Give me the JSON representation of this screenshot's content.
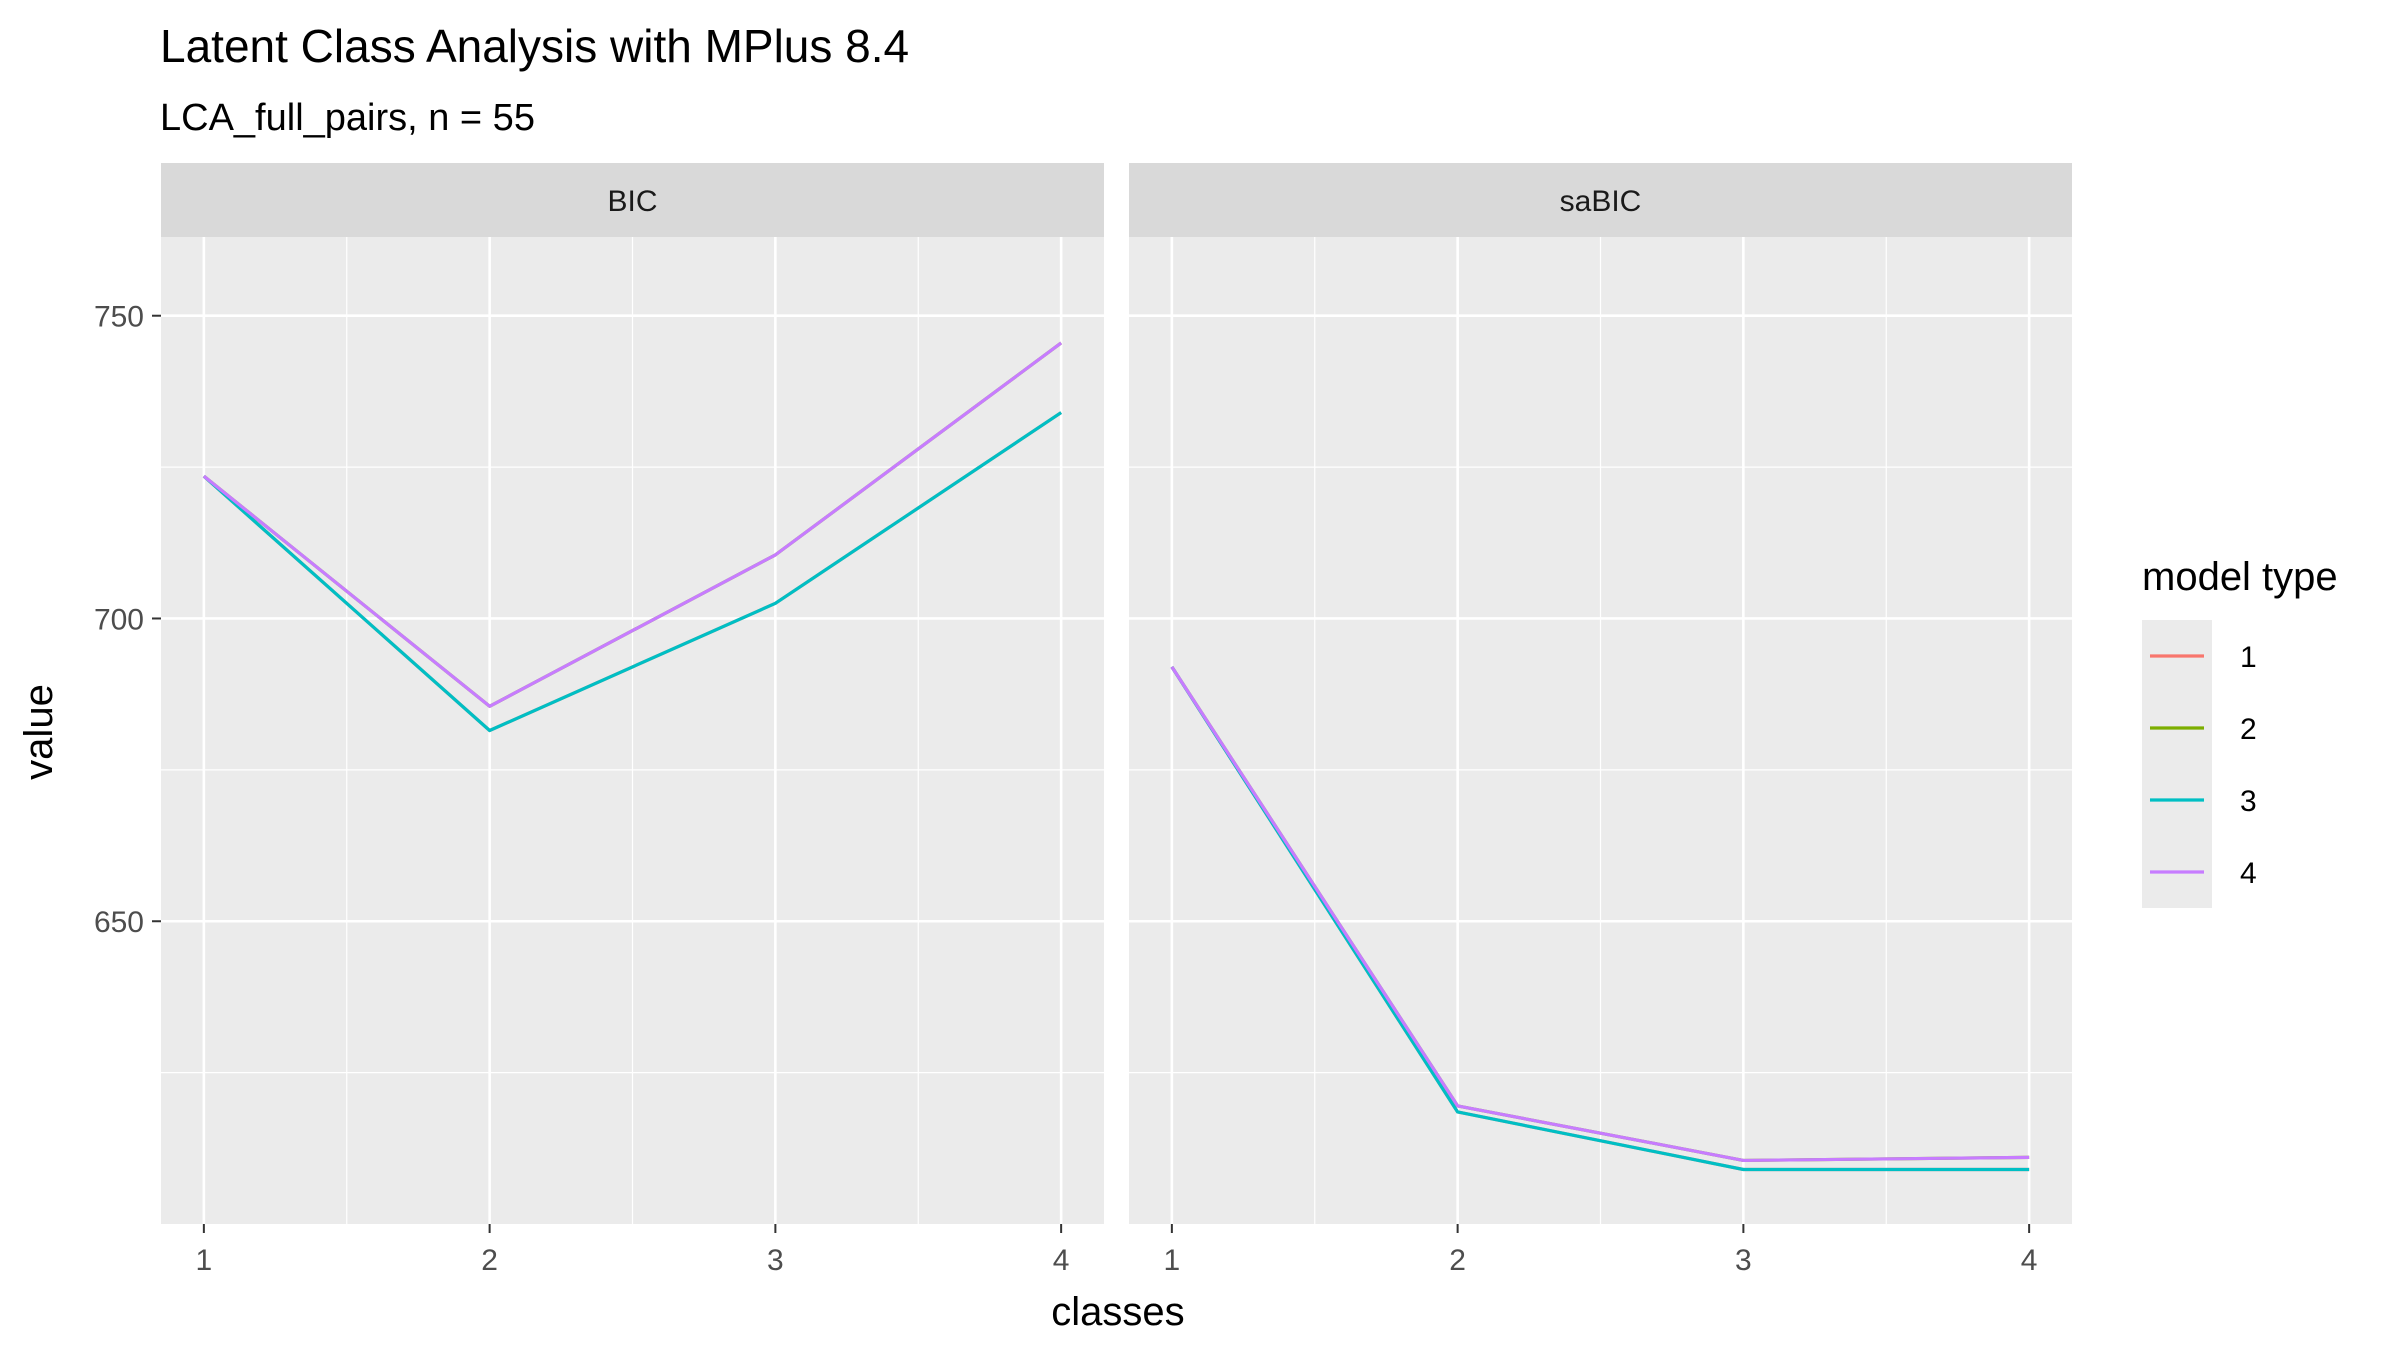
{
  "chart_data": {
    "type": "line",
    "title": "Latent Class Analysis with MPlus 8.4",
    "subtitle": "LCA_full_pairs, n = 55",
    "xlabel": "classes",
    "ylabel": "value",
    "x": [
      1,
      2,
      3,
      4
    ],
    "ylim": [
      600,
      763
    ],
    "yticks": [
      650,
      700,
      750
    ],
    "grid": true,
    "legend": {
      "title": "model type",
      "placement": "right",
      "entries": [
        "1",
        "2",
        "3",
        "4"
      ]
    },
    "colors": {
      "1": "#F8766D",
      "2": "#7CAE00",
      "3": "#00BFC4",
      "4": "#C77CFF",
      "panel_bg": "#EBEBEB",
      "strip_bg": "#D9D9D9",
      "grid": "#FFFFFF"
    },
    "facets": [
      {
        "label": "BIC",
        "series": [
          {
            "name": "1",
            "values": [
              723.5,
              681.5,
              702.5,
              734.0
            ]
          },
          {
            "name": "2",
            "values": [
              723.5,
              685.5,
              710.5,
              745.5
            ]
          },
          {
            "name": "3",
            "values": [
              723.5,
              681.5,
              702.5,
              734.0
            ]
          },
          {
            "name": "4",
            "values": [
              723.5,
              685.5,
              710.5,
              745.5
            ]
          }
        ]
      },
      {
        "label": "saBIC",
        "series": [
          {
            "name": "1",
            "values": [
              692.0,
              618.5,
              609.0,
              609.0
            ]
          },
          {
            "name": "2",
            "values": [
              692.0,
              619.5,
              610.5,
              611.0
            ]
          },
          {
            "name": "3",
            "values": [
              692.0,
              618.5,
              609.0,
              609.0
            ]
          },
          {
            "name": "4",
            "values": [
              692.0,
              619.5,
              610.5,
              611.0
            ]
          }
        ]
      }
    ]
  }
}
